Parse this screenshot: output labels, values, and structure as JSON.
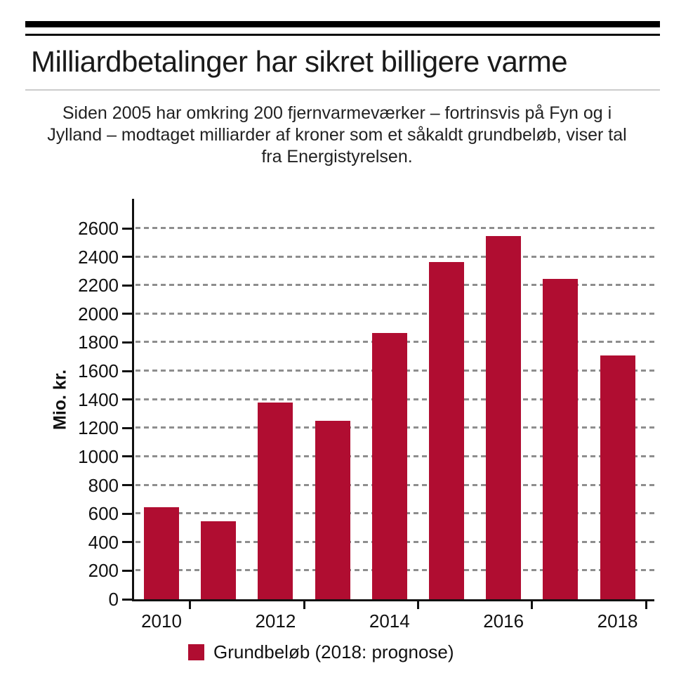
{
  "header": {
    "title": "Milliardbetalinger har sikret billigere varme",
    "subtitle_lines": [
      "Siden 2005 har omkring 200 fjernvarmeværker – fortrinsvis på Fyn og i",
      "Jylland – modtaget milliarder af kroner som et såkaldt grundbeløb, viser tal",
      "fra Energistyrelsen."
    ]
  },
  "chart_data": {
    "type": "bar",
    "categories": [
      2010,
      2011,
      2012,
      2013,
      2014,
      2015,
      2016,
      2017,
      2018
    ],
    "values": [
      645,
      545,
      1380,
      1250,
      1865,
      2365,
      2545,
      2245,
      1710
    ],
    "title": "",
    "xlabel": "",
    "ylabel": "Mio. kr.",
    "ylim": [
      0,
      2700
    ],
    "ytick_step": 200,
    "ytick_max": 2600,
    "xtick_labels": [
      "2010",
      "2012",
      "2014",
      "2016",
      "2018"
    ],
    "grid": "horizontal-dashed",
    "legend": {
      "label": "Grundbeløb (2018: prognose)",
      "position": "bottom"
    }
  },
  "colors": {
    "bar": "#b00d31",
    "axis": "#111111",
    "grid": "#8e8e8e",
    "divider": "#cccccc"
  }
}
